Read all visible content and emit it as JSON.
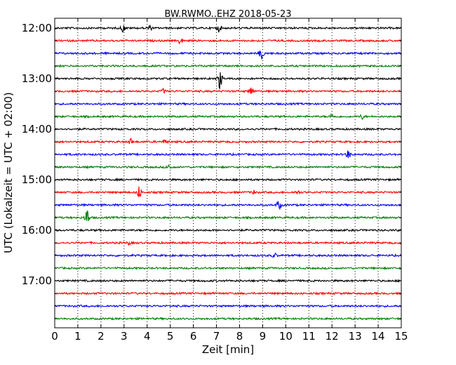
{
  "chart_data": {
    "type": "line",
    "title": "BW.RWMO..EHZ 2018-05-23",
    "xlabel": "Zeit  [min]",
    "ylabel": "UTC (Lokalzeit = UTC + 02:00)",
    "xlim": [
      0,
      15
    ],
    "x_ticks": [
      "0",
      "1",
      "2",
      "3",
      "4",
      "5",
      "6",
      "7",
      "8",
      "9",
      "10",
      "11",
      "12",
      "13",
      "14",
      "15"
    ],
    "y_ticks": [
      "12:00",
      "13:00",
      "14:00",
      "15:00",
      "16:00",
      "17:00"
    ],
    "grid": "vertical dotted lines at each minute",
    "trace_interval_min": 15,
    "trace_colors": [
      "#000000",
      "#ff0000",
      "#0000ff",
      "#008000"
    ],
    "traces": [
      {
        "start": "12:00",
        "events": [
          [
            2.95,
            5
          ],
          [
            7.1,
            5
          ],
          [
            4.1,
            3
          ]
        ]
      },
      {
        "start": "12:15",
        "events": [
          [
            5.45,
            5
          ]
        ]
      },
      {
        "start": "12:30",
        "events": [
          [
            8.95,
            8
          ]
        ]
      },
      {
        "start": "12:45",
        "events": []
      },
      {
        "start": "13:00",
        "events": [
          [
            7.15,
            14
          ]
        ]
      },
      {
        "start": "13:15",
        "events": [
          [
            8.5,
            6
          ],
          [
            4.7,
            3
          ]
        ]
      },
      {
        "start": "13:30",
        "events": []
      },
      {
        "start": "13:45",
        "events": [
          [
            12.0,
            3
          ],
          [
            13.3,
            3
          ]
        ]
      },
      {
        "start": "14:00",
        "events": []
      },
      {
        "start": "14:15",
        "events": [
          [
            3.3,
            4
          ],
          [
            4.8,
            3
          ]
        ]
      },
      {
        "start": "14:30",
        "events": [
          [
            12.7,
            6
          ]
        ]
      },
      {
        "start": "14:45",
        "events": [
          [
            4.95,
            4
          ]
        ]
      },
      {
        "start": "15:00",
        "events": []
      },
      {
        "start": "15:15",
        "events": [
          [
            3.65,
            9
          ],
          [
            8.65,
            3
          ],
          [
            10.5,
            3
          ]
        ]
      },
      {
        "start": "15:30",
        "events": [
          [
            9.7,
            6
          ]
        ]
      },
      {
        "start": "15:45",
        "events": [
          [
            1.4,
            12
          ]
        ]
      },
      {
        "start": "16:00",
        "events": []
      },
      {
        "start": "16:15",
        "events": [
          [
            3.2,
            2
          ]
        ]
      },
      {
        "start": "16:30",
        "events": [
          [
            9.5,
            3
          ]
        ]
      },
      {
        "start": "16:45",
        "events": []
      },
      {
        "start": "17:00",
        "events": []
      },
      {
        "start": "17:15",
        "events": []
      },
      {
        "start": "17:30",
        "events": []
      },
      {
        "start": "17:45",
        "events": []
      }
    ]
  }
}
